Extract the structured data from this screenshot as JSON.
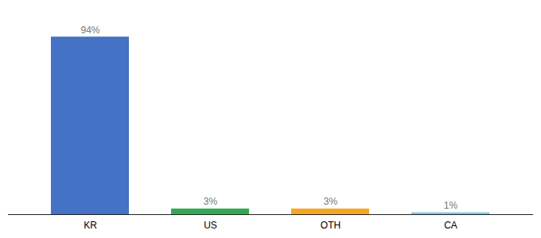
{
  "chart_data": {
    "type": "bar",
    "categories": [
      "KR",
      "US",
      "OTH",
      "CA"
    ],
    "values": [
      94,
      3,
      3,
      1
    ],
    "value_labels": [
      "94%",
      "3%",
      "3%",
      "1%"
    ],
    "colors": [
      "#4472c4",
      "#33a853",
      "#f5a623",
      "#7ec8e3"
    ],
    "ylim": [
      0,
      105
    ],
    "data_labels": true,
    "tick_labels": "x"
  }
}
